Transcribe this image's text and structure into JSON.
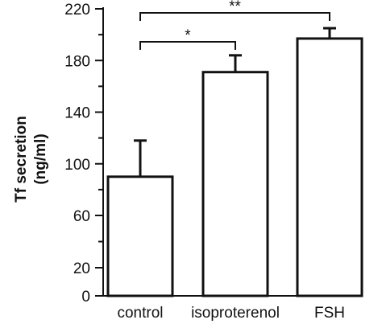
{
  "chart_data": {
    "type": "bar",
    "title": "",
    "xlabel": "",
    "ylabel_lines": [
      "Tf secretion",
      "(ng/ml)"
    ],
    "ylim": [
      0,
      220
    ],
    "axis_breaks": [
      {
        "from": 20,
        "to": 60,
        "gap_after_visual": true
      }
    ],
    "y_ticks": [
      0,
      20,
      60,
      100,
      140,
      180,
      220
    ],
    "categories": [
      "control",
      "isoproterenol",
      "FSH"
    ],
    "values": [
      90,
      171,
      197
    ],
    "errors": [
      28,
      13,
      8
    ],
    "significance": [
      {
        "from": "control",
        "to": "isoproterenol",
        "label": "*"
      },
      {
        "from": "control",
        "to": "FSH",
        "label": "**"
      }
    ],
    "colors": {
      "bar_fill": "#ffffff",
      "stroke": "#111111"
    },
    "grid": false,
    "legend": "none"
  }
}
